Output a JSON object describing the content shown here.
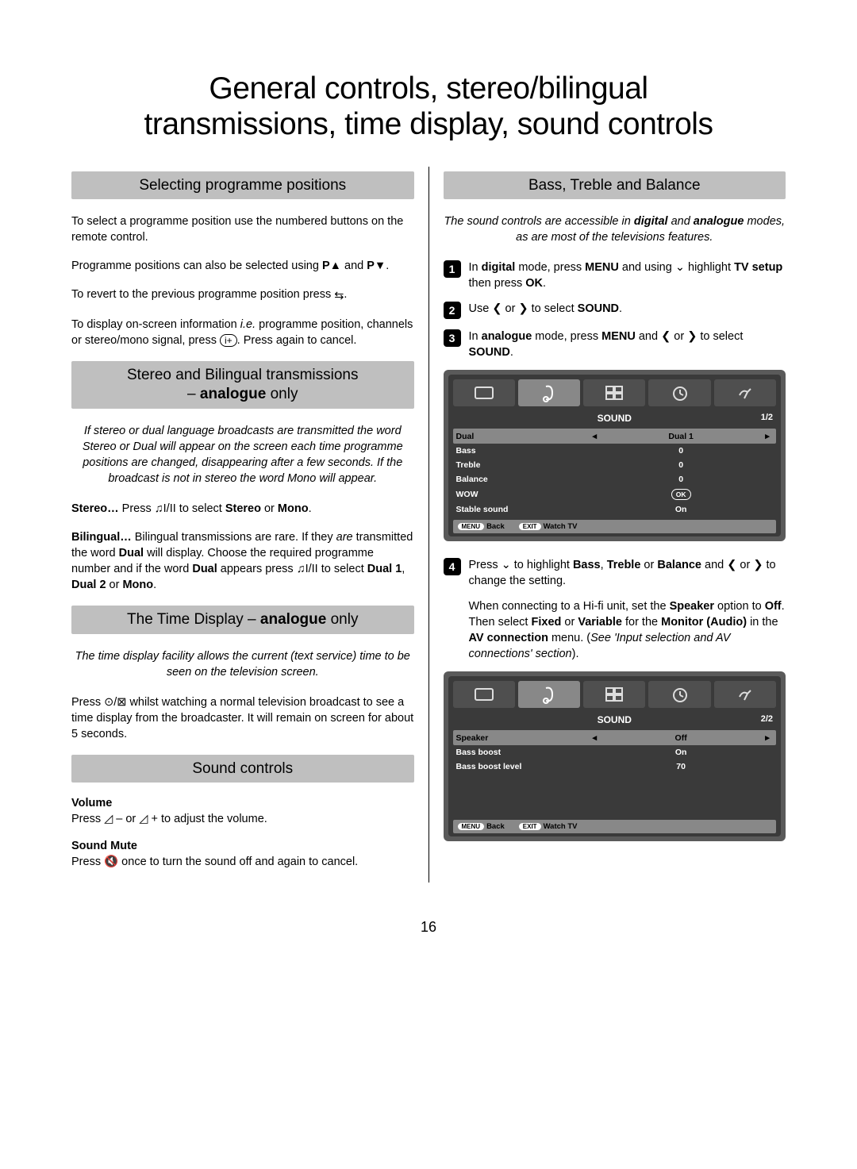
{
  "page": {
    "title_line1": "General controls, stereo/bilingual",
    "title_line2": "transmissions, time display, sound controls",
    "number": "16"
  },
  "sections": {
    "selecting": {
      "heading": "Selecting programme positions",
      "p1": "To select a programme position use the numbered buttons on the remote control.",
      "p2_a": "Programme positions can also be selected using ",
      "p2_b": " and ",
      "p2_end": ".",
      "p_up": "P▲",
      "p_down": "P▼",
      "p3_a": "To revert to the previous programme position press ",
      "p3_end": ".",
      "swap_icon": "⇆",
      "p4_a": "To display on-screen information ",
      "p4_ie": "i.e.",
      "p4_b": " programme position, channels or stereo/mono signal, press ",
      "p4_btn": "i+",
      "p4_c": ". Press again to cancel."
    },
    "stereo": {
      "heading_a": "Stereo and Bilingual transmissions",
      "heading_b_prefix": "– ",
      "heading_b_bold": "analogue",
      "heading_b_suffix": " only",
      "intro": "If stereo or dual language broadcasts are transmitted the word Stereo or Dual will appear on the screen each time programme positions are changed, disappearing after a few seconds. If the broadcast is not in stereo the word Mono will appear.",
      "stereo_label": "Stereo…",
      "stereo_a": " Press ",
      "stereo_icon": "♫I/II",
      "stereo_b": " to select ",
      "stereo_opt1": "Stereo",
      "stereo_or": " or ",
      "stereo_opt2": "Mono",
      "stereo_end": ".",
      "bil_label": "Bilingual…",
      "bil_a": " Bilingual transmissions are rare. If they ",
      "bil_are": "are",
      "bil_b": " transmitted the word ",
      "bil_dual": "Dual",
      "bil_c": " will display. Choose the required programme number and if the word ",
      "bil_d": " appears press ",
      "bil_e": " to select ",
      "bil_d1": "Dual 1",
      "bil_d2": "Dual 2",
      "bil_mono": "Mono"
    },
    "time": {
      "heading_prefix": "The Time Display – ",
      "heading_bold": "analogue",
      "heading_suffix": " only",
      "intro": "The time display facility allows the current (text service) time to be seen on the television screen.",
      "p1_a": "Press ",
      "p1_icon": "⊙/⊠",
      "p1_b": " whilst watching a normal television broadcast to see a time display from the broadcaster. It will remain on screen for about 5 seconds."
    },
    "sound_controls": {
      "heading": "Sound controls",
      "volume_label": "Volume",
      "volume_a": "Press ",
      "vol_minus": "◿ –",
      "volume_or": "  or  ",
      "vol_plus": "◿ +",
      "volume_b": "  to adjust the volume.",
      "mute_label": "Sound Mute",
      "mute_a": "Press ",
      "mute_icon": "🔇",
      "mute_b": " once to turn the sound off and again to cancel."
    },
    "bass": {
      "heading": "Bass, Treble and Balance",
      "intro_a": "The sound controls are accessible in ",
      "intro_digital": "digital",
      "intro_b": " and ",
      "intro_analogue": "analogue",
      "intro_c": " modes, as are most of the televisions features.",
      "step1_a": "In ",
      "step1_digital": "digital",
      "step1_b": " mode, press ",
      "step1_menu": "MENU",
      "step1_c": " and using ",
      "step1_down": "⌄",
      "step1_d": " highlight ",
      "step1_tv": "TV setup",
      "step1_e": " then press ",
      "step1_ok": "OK",
      "step1_end": ".",
      "step2_a": "Use ",
      "step2_l": "❮",
      "step2_or": " or ",
      "step2_r": "❯",
      "step2_b": " to select ",
      "step2_sound": "SOUND",
      "step2_end": ".",
      "step3_a": "In ",
      "step3_analogue": "analogue",
      "step3_b": " mode, press ",
      "step3_c": " and ",
      "step3_d": " to select ",
      "step4_a": "Press ",
      "step4_b": " to highlight ",
      "step4_bass": "Bass",
      "step4_c": ", ",
      "step4_treble": "Treble",
      "step4_or": " or ",
      "step4_balance": "Balance",
      "step4_d": " and ",
      "step4_e": " to change the setting.",
      "p_after_a": "When connecting to a Hi-fi unit, set the ",
      "p_after_speaker": "Speaker",
      "p_after_b": " option to ",
      "p_after_off": "Off",
      "p_after_c": ". Then select ",
      "p_after_fixed": "Fixed",
      "p_after_or": " or ",
      "p_after_var": "Variable",
      "p_after_d": " for the ",
      "p_after_mon": "Monitor (Audio)",
      "p_after_e": " in the ",
      "p_after_av": "AV connection",
      "p_after_f": " menu. (",
      "p_after_see": "See 'Input selection and AV connections' section",
      "p_after_g": ")."
    }
  },
  "osd1": {
    "title": "SOUND",
    "page": "1/2",
    "rows": [
      {
        "label": "Dual",
        "value": "Dual 1",
        "selected": true,
        "arrows": true
      },
      {
        "label": "Bass",
        "value": "0",
        "selected": false,
        "arrows": false
      },
      {
        "label": "Treble",
        "value": "0",
        "selected": false,
        "arrows": false
      },
      {
        "label": "Balance",
        "value": "0",
        "selected": false,
        "arrows": false
      },
      {
        "label": "WOW",
        "value": "OK",
        "selected": false,
        "ok": true
      },
      {
        "label": "Stable sound",
        "value": "On",
        "selected": false,
        "arrows": false
      }
    ],
    "footer": {
      "menu": "MENU",
      "back": "Back",
      "exit": "EXIT",
      "watch": "Watch TV"
    }
  },
  "osd2": {
    "title": "SOUND",
    "page": "2/2",
    "rows": [
      {
        "label": "Speaker",
        "value": "Off",
        "selected": true,
        "arrows": true
      },
      {
        "label": "Bass boost",
        "value": "On",
        "selected": false,
        "arrows": false
      },
      {
        "label": "Bass boost level",
        "value": "70",
        "selected": false,
        "arrows": false
      }
    ],
    "footer": {
      "menu": "MENU",
      "back": "Back",
      "exit": "EXIT",
      "watch": "Watch TV"
    }
  },
  "colors": {
    "section_bar": "#bfbfbf",
    "osd_outer": "#5a5a5a",
    "osd_inner": "#3a3a3a",
    "osd_tab": "#4f4f4f",
    "osd_sel": "#888888"
  }
}
